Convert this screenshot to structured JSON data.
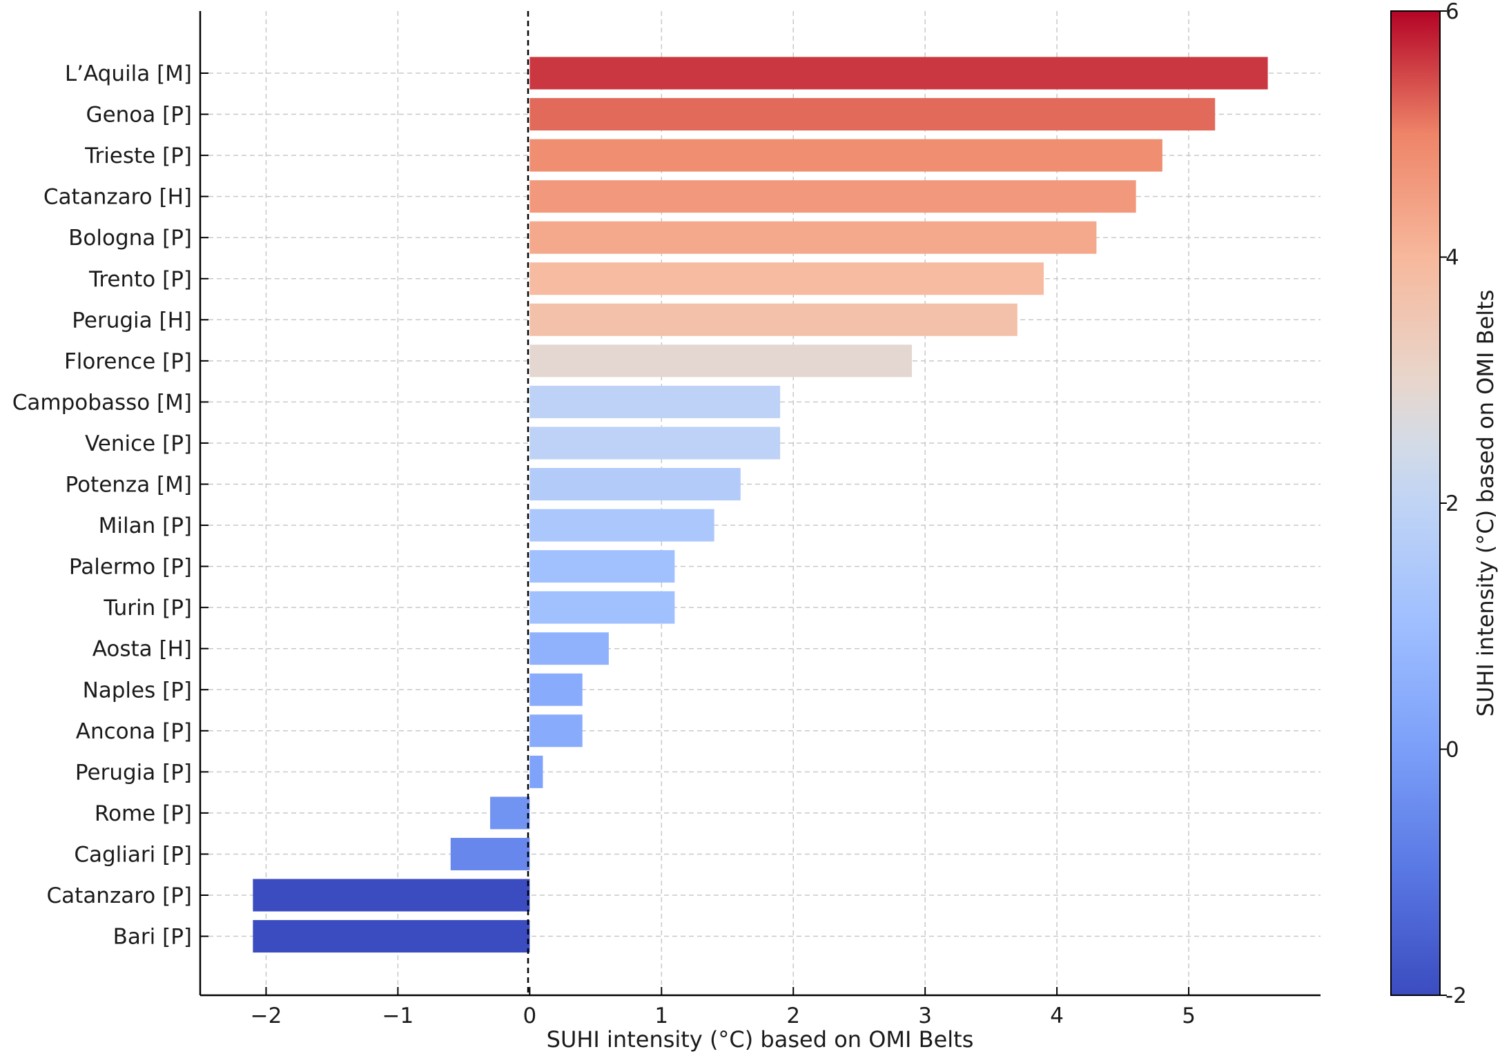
{
  "chart_data": {
    "type": "bar",
    "orientation": "horizontal",
    "categories": [
      "L’Aquila [M]",
      "Genoa [P]",
      "Trieste [P]",
      "Catanzaro [H]",
      "Bologna [P]",
      "Trento [P]",
      "Perugia [H]",
      "Florence [P]",
      "Campobasso [M]",
      "Venice [P]",
      "Potenza [M]",
      "Milan [P]",
      "Palermo [P]",
      "Turin [P]",
      "Aosta [H]",
      "Naples [P]",
      "Ancona [P]",
      "Perugia [P]",
      "Rome [P]",
      "Cagliari [P]",
      "Catanzaro [P]",
      "Bari [P]"
    ],
    "values": [
      5.6,
      5.2,
      4.8,
      4.6,
      4.3,
      3.9,
      3.7,
      2.9,
      1.9,
      1.9,
      1.6,
      1.4,
      1.1,
      1.1,
      0.6,
      0.4,
      0.4,
      0.1,
      -0.3,
      -0.6,
      -2.1,
      -2.1
    ],
    "xlabel": "SUHI intensity (°C) based on OMI Belts",
    "ylabel": "",
    "xlim": [
      -2.5,
      6.0
    ],
    "xticks": [
      "−2",
      "−1",
      "0",
      "1",
      "2",
      "3",
      "4",
      "5"
    ],
    "xtick_values": [
      -2,
      -1,
      0,
      1,
      2,
      3,
      4,
      5
    ],
    "grid": true,
    "zero_line": "dashed",
    "colormap": "coolwarm",
    "colorbar": {
      "label": "SUHI intensity (°C) based on OMI Belts",
      "range": [
        -2,
        6
      ],
      "ticks": [
        "6",
        "4",
        "2",
        "0",
        "-2"
      ],
      "tick_values": [
        6,
        4,
        2,
        0,
        -2
      ]
    }
  }
}
